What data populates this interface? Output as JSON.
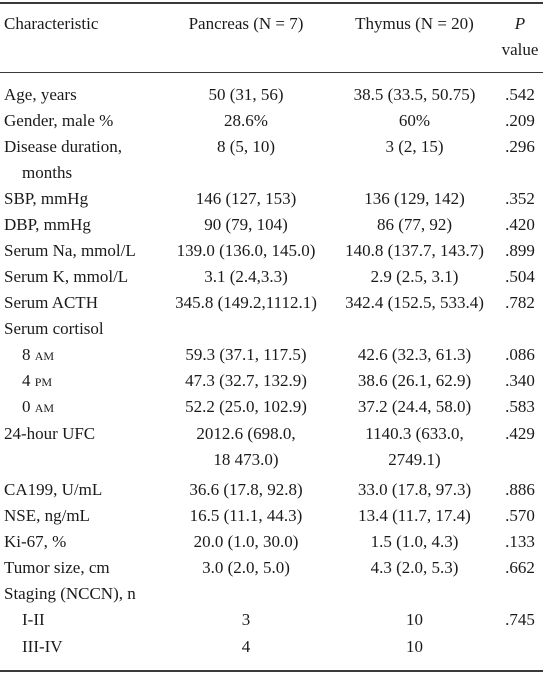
{
  "header": {
    "characteristic": "Characteristic",
    "pancreas": "Pancreas (N = 7)",
    "thymus": "Thymus (N = 20)",
    "p_line1": "P",
    "p_line2": "value"
  },
  "rows": [
    {
      "label": "Age, years",
      "pancreas": "50 (31, 56)",
      "thymus": "38.5 (33.5, 50.75)",
      "p": ".542"
    },
    {
      "label": "Gender, male %",
      "pancreas": "28.6%",
      "thymus": "60%",
      "p": ".209"
    },
    {
      "label": "Disease duration,",
      "label2": "months",
      "pancreas": "8 (5, 10)",
      "thymus": "3 (2, 15)",
      "p": ".296"
    },
    {
      "label": "SBP, mmHg",
      "pancreas": "146 (127, 153)",
      "thymus": "136 (129, 142)",
      "p": ".352"
    },
    {
      "label": "DBP, mmHg",
      "pancreas": "90 (79, 104)",
      "thymus": "86 (77, 92)",
      "p": ".420"
    },
    {
      "label": "Serum Na, mmol/L",
      "pancreas": "139.0 (136.0, 145.0)",
      "thymus": "140.8 (137.7, 143.7)",
      "p": ".899"
    },
    {
      "label": "Serum K, mmol/L",
      "pancreas": "3.1 (2.4,3.3)",
      "thymus": "2.9 (2.5, 3.1)",
      "p": ".504"
    },
    {
      "label": "Serum ACTH",
      "pancreas": "345.8 (149.2,1112.1)",
      "thymus": "342.4 (152.5, 533.4)",
      "p": ".782"
    },
    {
      "label": "Serum cortisol"
    },
    {
      "label": "8 am",
      "pancreas": "59.3 (37.1, 117.5)",
      "thymus": "42.6 (32.3, 61.3)",
      "p": ".086"
    },
    {
      "label": "4 pm",
      "pancreas": "47.3 (32.7, 132.9)",
      "thymus": "38.6 (26.1, 62.9)",
      "p": ".340"
    },
    {
      "label": "0 am",
      "pancreas": "52.2 (25.0, 102.9)",
      "thymus": "37.2 (24.4, 58.0)",
      "p": ".583"
    },
    {
      "label": "24-hour UFC",
      "pancreas": "2012.6 (698.0,",
      "pancreas2": "18 473.0)",
      "thymus": "1140.3 (633.0,",
      "thymus2": "2749.1)",
      "p": ".429"
    },
    {
      "label": "CA199, U/mL",
      "pancreas": "36.6 (17.8, 92.8)",
      "thymus": "33.0 (17.8, 97.3)",
      "p": ".886"
    },
    {
      "label": "NSE, ng/mL",
      "pancreas": "16.5 (11.1, 44.3)",
      "thymus": "13.4 (11.7, 17.4)",
      "p": ".570"
    },
    {
      "label": "Ki-67, %",
      "pancreas": "20.0 (1.0, 30.0)",
      "thymus": "1.5 (1.0, 4.3)",
      "p": ".133"
    },
    {
      "label": "Tumor size, cm",
      "pancreas": "3.0 (2.0, 5.0)",
      "thymus": "4.3 (2.0, 5.3)",
      "p": ".662"
    },
    {
      "label": "Staging (NCCN), n"
    },
    {
      "label": "I-II",
      "pancreas": "3",
      "thymus": "10",
      "p": ".745"
    },
    {
      "label": "III-IV",
      "pancreas": "4",
      "thymus": "10"
    }
  ]
}
